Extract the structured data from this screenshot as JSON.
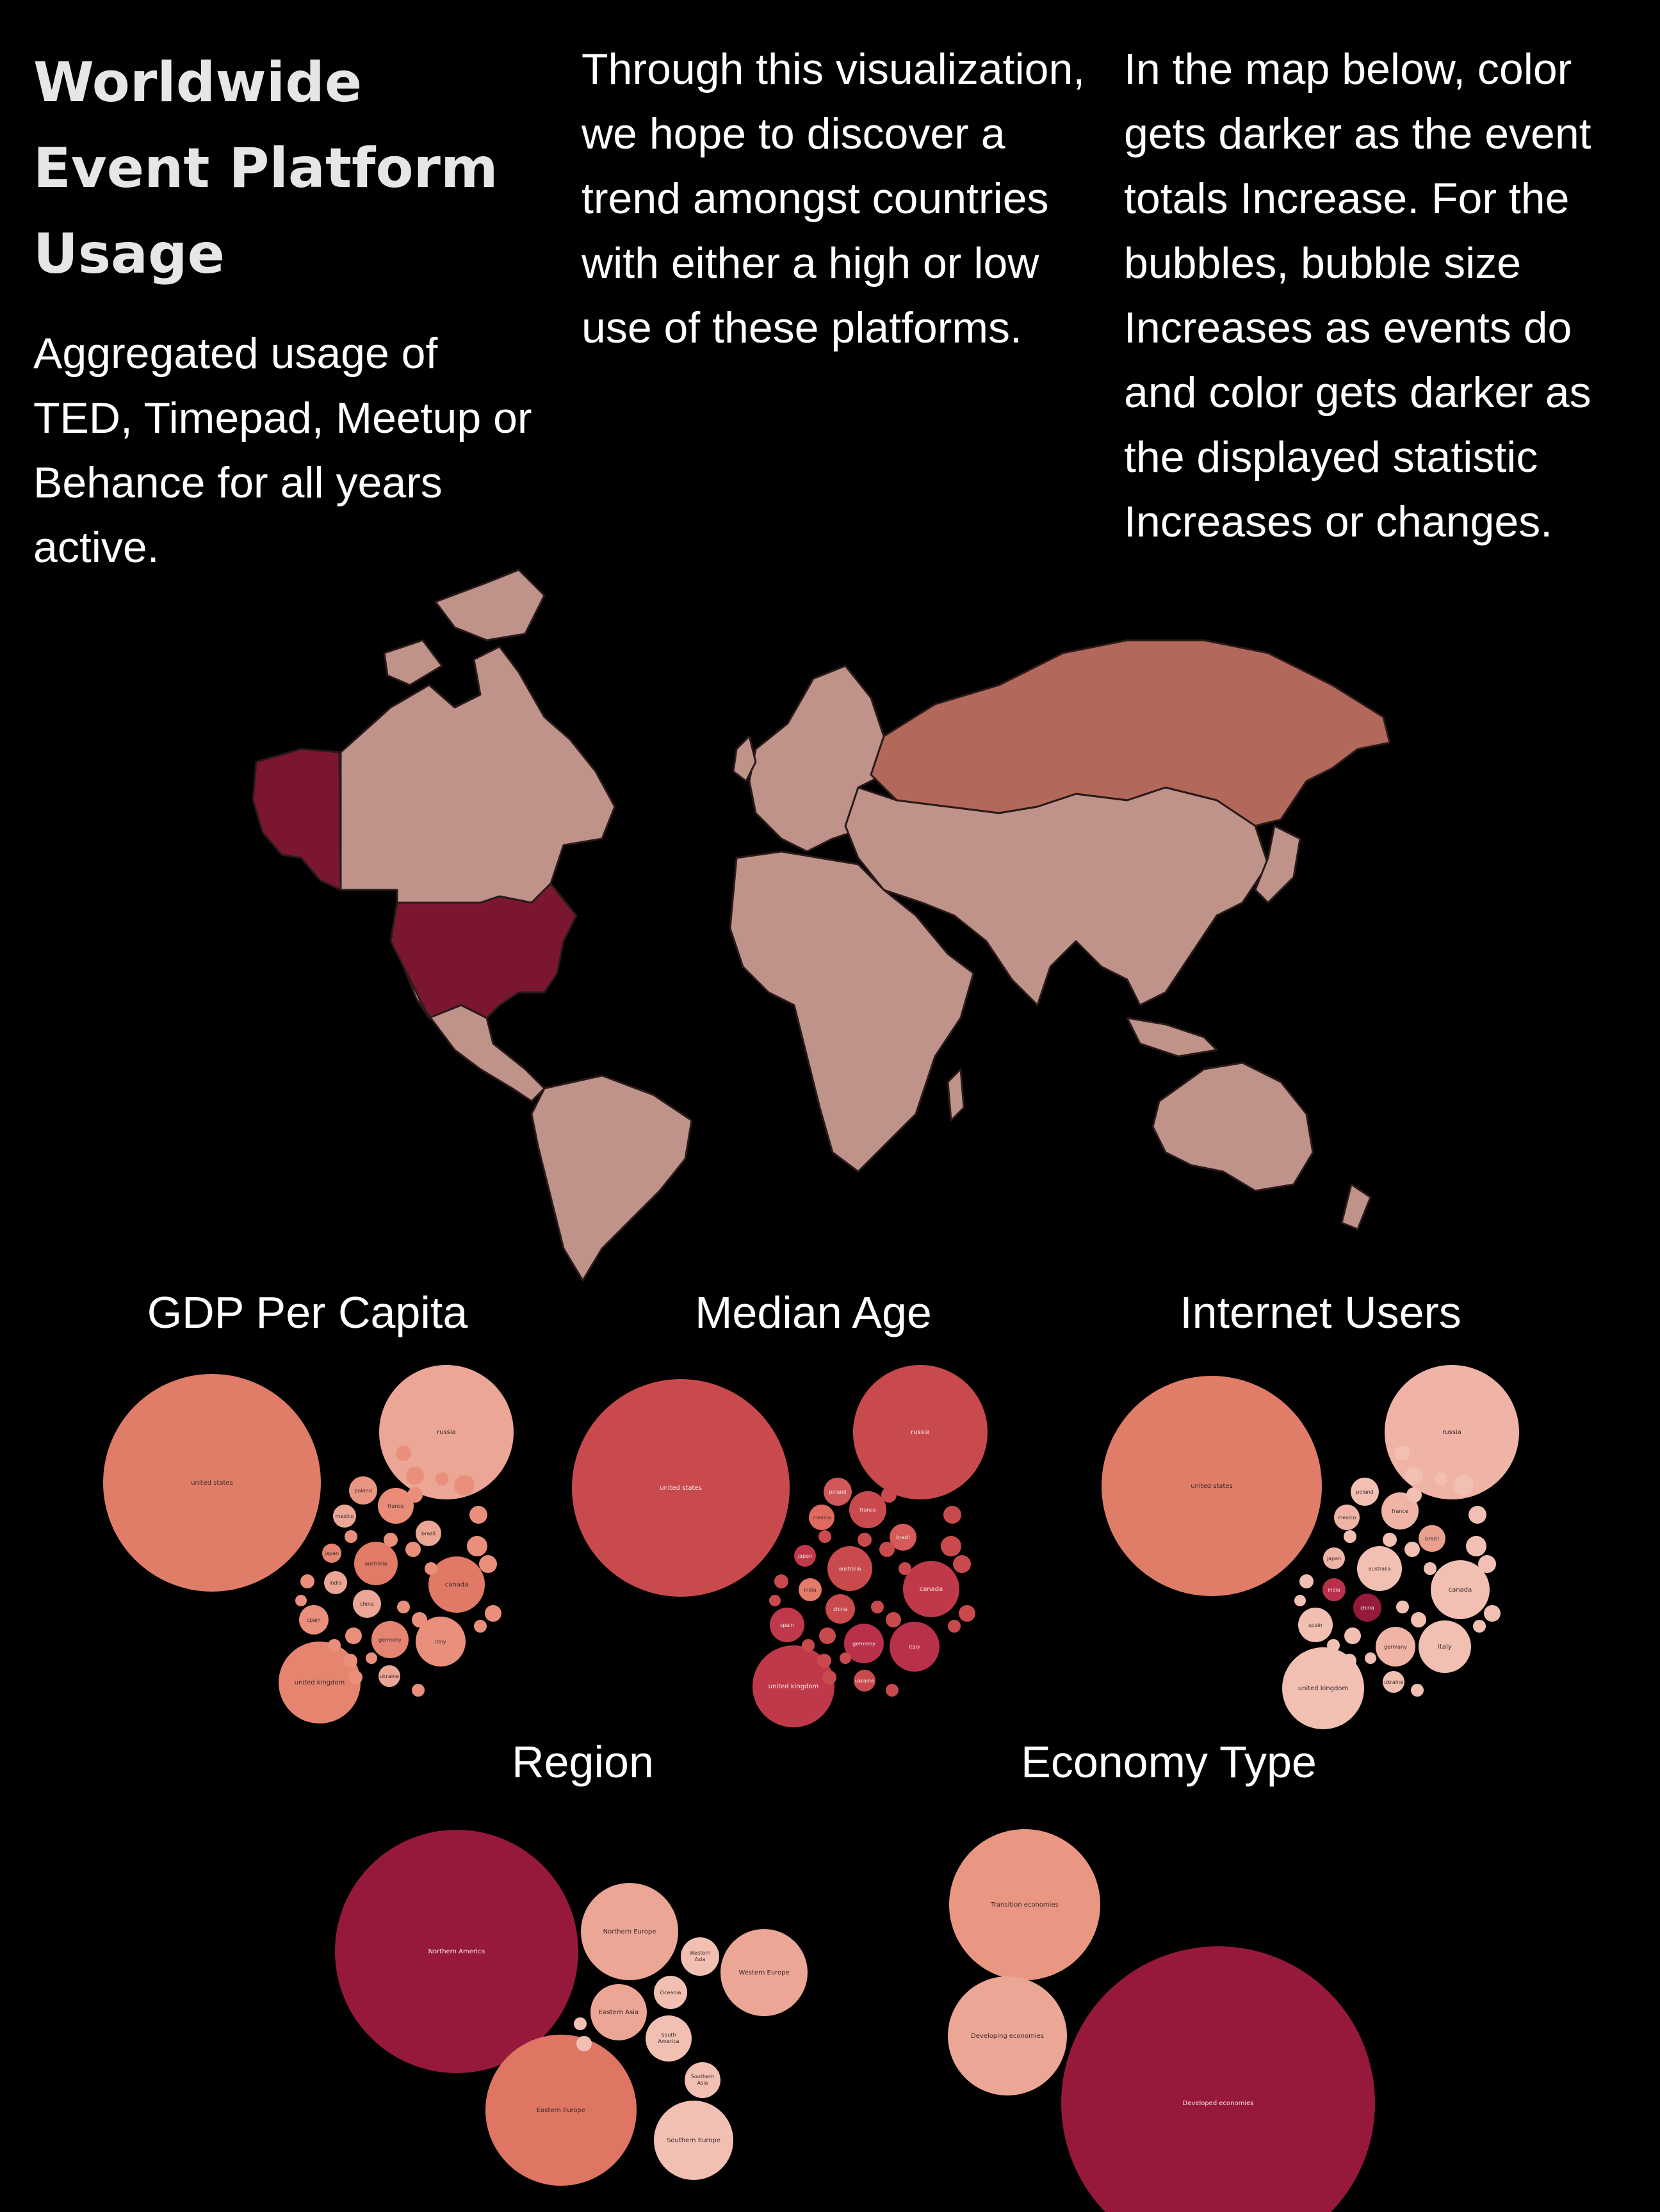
{
  "header": {
    "title": "Worldwide Event Platform Usage",
    "subtitle": "Aggregated usage of TED, Timepad, Meetup or Behance for all years active.",
    "intro_mid": "Through this visualization, we hope to discover a trend amongst countries with either a high or low use of these platforms.",
    "intro_right": "In the map below, color gets darker as the event totals Increase. For the bubbles, bubble size Increases as events do and color gets darker as the displayed statistic Increases or changes."
  },
  "colors": {
    "background": "#000000",
    "map_low": "#bf938a",
    "map_mid": "#b2685a",
    "map_high": "#7a1630",
    "border": "#2a1a1a"
  },
  "chart_data": [
    {
      "type": "choropleth",
      "highlighted": [
        {
          "country": "united states",
          "level": "high"
        },
        {
          "country": "russia",
          "level": "mid"
        }
      ]
    },
    {
      "type": "bubble",
      "title": "GDP Per Capita",
      "bubbles": [
        {
          "label": "united states",
          "size": 100,
          "color": "#df7d68"
        },
        {
          "label": "russia",
          "size": 40,
          "color": "#eba695"
        },
        {
          "label": "poland",
          "size": 5,
          "color": "#e99582"
        },
        {
          "label": "mexico",
          "size": 4,
          "color": "#eba695"
        },
        {
          "label": "france",
          "size": 6,
          "color": "#e88c77"
        },
        {
          "label": "brazil",
          "size": 4,
          "color": "#eba695"
        },
        {
          "label": "japan",
          "size": 3,
          "color": "#e58472"
        },
        {
          "label": "australia",
          "size": 7,
          "color": "#e17a66"
        },
        {
          "label": "india",
          "size": 4,
          "color": "#eba695"
        },
        {
          "label": "china",
          "size": 5,
          "color": "#eba695"
        },
        {
          "label": "canada",
          "size": 12,
          "color": "#e07966"
        },
        {
          "label": "spain",
          "size": 6,
          "color": "#e98f7c"
        },
        {
          "label": "germany",
          "size": 7,
          "color": "#e58472"
        },
        {
          "label": "italy",
          "size": 11,
          "color": "#e98f7c"
        },
        {
          "label": "ukraine",
          "size": 3,
          "color": "#eba695"
        },
        {
          "label": "united kingdom",
          "size": 18,
          "color": "#e6856f"
        }
      ]
    },
    {
      "type": "bubble",
      "title": "Median Age",
      "bubbles": [
        {
          "label": "united states",
          "size": 100,
          "color": "#c94a4d"
        },
        {
          "label": "russia",
          "size": 40,
          "color": "#c94a4d"
        },
        {
          "label": "poland",
          "size": 5,
          "color": "#d0575a"
        },
        {
          "label": "mexico",
          "size": 4,
          "color": "#e06a60"
        },
        {
          "label": "france",
          "size": 6,
          "color": "#c94a4d"
        },
        {
          "label": "brazil",
          "size": 4,
          "color": "#d55a58"
        },
        {
          "label": "japan",
          "size": 3,
          "color": "#c0394a"
        },
        {
          "label": "australia",
          "size": 7,
          "color": "#c94a4d"
        },
        {
          "label": "india",
          "size": 4,
          "color": "#e47a68"
        },
        {
          "label": "china",
          "size": 5,
          "color": "#c94a4d"
        },
        {
          "label": "canada",
          "size": 12,
          "color": "#c0394a"
        },
        {
          "label": "spain",
          "size": 6,
          "color": "#c0394a"
        },
        {
          "label": "germany",
          "size": 7,
          "color": "#b8304a"
        },
        {
          "label": "italy",
          "size": 11,
          "color": "#b8304a"
        },
        {
          "label": "ukraine",
          "size": 3,
          "color": "#c94a4d"
        },
        {
          "label": "united kingdom",
          "size": 18,
          "color": "#c0394a"
        }
      ]
    },
    {
      "type": "bubble",
      "title": "Internet Users",
      "bubbles": [
        {
          "label": "united states",
          "size": 100,
          "color": "#df7d68"
        },
        {
          "label": "russia",
          "size": 40,
          "color": "#efb4a6"
        },
        {
          "label": "poland",
          "size": 5,
          "color": "#f1c0b3"
        },
        {
          "label": "mexico",
          "size": 4,
          "color": "#efb4a6"
        },
        {
          "label": "france",
          "size": 6,
          "color": "#efb4a6"
        },
        {
          "label": "brazil",
          "size": 4,
          "color": "#e9a08f"
        },
        {
          "label": "japan",
          "size": 3,
          "color": "#efb4a6"
        },
        {
          "label": "australia",
          "size": 7,
          "color": "#f1c0b3"
        },
        {
          "label": "india",
          "size": 4,
          "color": "#b8304a"
        },
        {
          "label": "china",
          "size": 5,
          "color": "#951a3b"
        },
        {
          "label": "canada",
          "size": 12,
          "color": "#f1c0b3"
        },
        {
          "label": "spain",
          "size": 6,
          "color": "#f1c0b3"
        },
        {
          "label": "germany",
          "size": 7,
          "color": "#efb4a6"
        },
        {
          "label": "italy",
          "size": 11,
          "color": "#f1c0b3"
        },
        {
          "label": "ukraine",
          "size": 3,
          "color": "#f1c0b3"
        },
        {
          "label": "united kingdom",
          "size": 18,
          "color": "#f1c0b3"
        }
      ]
    },
    {
      "type": "bubble",
      "title": "Region",
      "bubbles": [
        {
          "label": "Northern America",
          "size": 100,
          "color": "#96193c"
        },
        {
          "label": "Northern Europe",
          "size": 20,
          "color": "#eba695"
        },
        {
          "label": "Western Asia",
          "size": 4,
          "color": "#f1c0b3"
        },
        {
          "label": "Western Europe",
          "size": 15,
          "color": "#eba695"
        },
        {
          "label": "Oceania",
          "size": 4,
          "color": "#f1c0b3"
        },
        {
          "label": "Eastern Asia",
          "size": 6,
          "color": "#eba695"
        },
        {
          "label": "South America",
          "size": 5,
          "color": "#f1c0b3"
        },
        {
          "label": "Southern Asia",
          "size": 4,
          "color": "#f1c0b3"
        },
        {
          "label": "Eastern Europe",
          "size": 46,
          "color": "#df7563"
        },
        {
          "label": "Southern Europe",
          "size": 13,
          "color": "#f1c0b3"
        }
      ]
    },
    {
      "type": "bubble",
      "title": "Economy Type",
      "bubbles": [
        {
          "label": "Transition economies",
          "size": 25,
          "color": "#e99782"
        },
        {
          "label": "Developing economies",
          "size": 15,
          "color": "#eba695"
        },
        {
          "label": "Developed economies",
          "size": 100,
          "color": "#96193c"
        }
      ]
    }
  ]
}
